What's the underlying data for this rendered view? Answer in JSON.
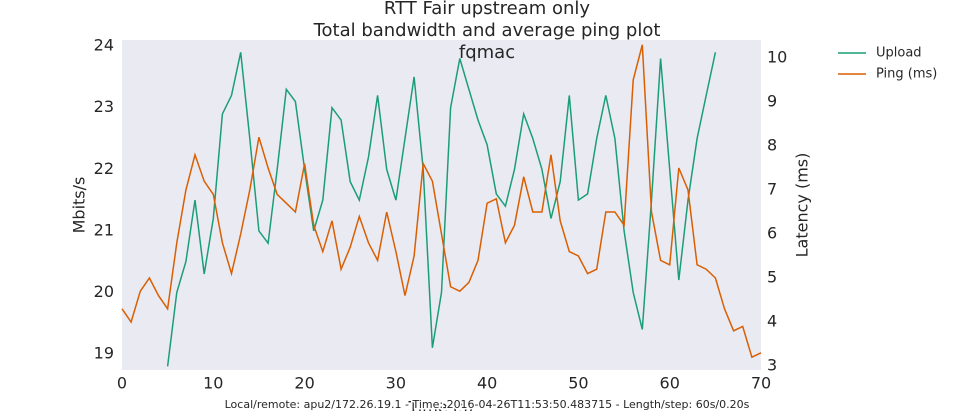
{
  "chart_data": {
    "type": "line",
    "title": "RTT Fair upstream only",
    "subtitle": "Total bandwidth and average ping plot",
    "subtitle2": "fqmac",
    "xlabel": "Time (s)",
    "ylabel": "Mbits/s",
    "y2label": "Latency (ms)",
    "footnote": "Local/remote: apu2/172.26.19.1 - Time: 2016-04-26T11:53:50.483715 - Length/step: 60s/0.20s",
    "x": [
      0,
      1,
      2,
      3,
      4,
      5,
      6,
      7,
      8,
      9,
      10,
      11,
      12,
      13,
      14,
      15,
      16,
      17,
      18,
      19,
      20,
      21,
      22,
      23,
      24,
      25,
      26,
      27,
      28,
      29,
      30,
      31,
      32,
      33,
      34,
      35,
      36,
      37,
      38,
      39,
      40,
      41,
      42,
      43,
      44,
      45,
      46,
      47,
      48,
      49,
      50,
      51,
      52,
      53,
      54,
      55,
      56,
      57,
      58,
      59,
      60,
      61,
      62,
      63,
      64,
      65,
      66,
      67,
      68,
      69,
      70
    ],
    "series": [
      {
        "name": "Upload",
        "color": "#1b9e77",
        "values": [
          null,
          null,
          null,
          null,
          null,
          18.8,
          20.0,
          20.5,
          21.5,
          20.3,
          21.2,
          22.9,
          23.2,
          23.9,
          22.5,
          21.0,
          20.8,
          22.0,
          23.3,
          23.1,
          22.0,
          21.0,
          21.5,
          23.0,
          22.8,
          21.8,
          21.5,
          22.2,
          23.2,
          22.0,
          21.5,
          22.5,
          23.5,
          22.0,
          19.1,
          20.0,
          23.0,
          23.8,
          23.3,
          22.8,
          22.4,
          21.6,
          21.4,
          22.0,
          22.9,
          22.5,
          22.0,
          21.2,
          21.8,
          23.2,
          21.5,
          21.6,
          22.5,
          23.2,
          22.5,
          21.0,
          20.0,
          19.4,
          21.5,
          23.8,
          22.0,
          20.2,
          21.5,
          22.5,
          23.2,
          23.9,
          null,
          null,
          null,
          null,
          null
        ]
      },
      {
        "name": "Ping (ms)",
        "color": "#d95f02",
        "axis": "y2",
        "values": [
          4.3,
          4.0,
          4.7,
          5.0,
          4.6,
          4.3,
          5.8,
          7.0,
          7.8,
          7.2,
          6.9,
          5.8,
          5.1,
          6.0,
          7.0,
          8.2,
          7.5,
          6.9,
          6.7,
          6.5,
          7.6,
          6.2,
          5.6,
          6.3,
          5.2,
          5.7,
          6.4,
          5.8,
          5.4,
          6.5,
          5.6,
          4.6,
          5.5,
          7.6,
          7.2,
          6.0,
          4.8,
          4.7,
          4.9,
          5.4,
          6.7,
          6.8,
          5.8,
          6.2,
          7.3,
          6.5,
          6.5,
          7.8,
          6.3,
          5.6,
          5.5,
          5.1,
          5.2,
          6.5,
          6.5,
          6.2,
          9.5,
          10.3,
          6.5,
          5.4,
          5.3,
          7.5,
          7.0,
          5.3,
          5.2,
          5.0,
          4.3,
          3.8,
          3.9,
          3.2,
          3.3
        ]
      }
    ],
    "xlim": [
      0,
      70
    ],
    "xticks": [
      0,
      10,
      20,
      30,
      40,
      50,
      60,
      70
    ],
    "ylim": [
      18.74,
      24.1
    ],
    "yticks": [
      19,
      20,
      21,
      22,
      23,
      24
    ],
    "y2lim": [
      2.91,
      10.41
    ],
    "y2ticks": [
      3,
      4,
      5,
      6,
      7,
      8,
      9,
      10
    ],
    "background": "#eaeaf2"
  }
}
